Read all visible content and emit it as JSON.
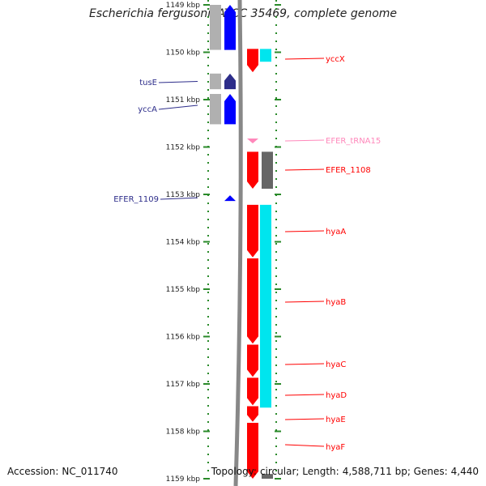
{
  "title": "Escherichia fergusonii ATCC 35469, complete genome",
  "footer": {
    "accession_label": "Accession:",
    "accession": "NC_011740",
    "topology_label": "Topology:",
    "topology": "circular",
    "length_label": "Length:",
    "length": "4,588,711 bp",
    "genes_label": "Genes:",
    "genes": "4,440"
  },
  "colors": {
    "forward_cds": "#0000ff",
    "forward_dark": "#2d2d8a",
    "reverse_cds": "#ff0000",
    "trna": "#ff88bb",
    "cyan_track": "#00e5ee",
    "gray_track": "#b0b0b0",
    "dark_gray_track": "#666666",
    "tick_green": "#2a8a2a",
    "backbone": "#888888"
  },
  "chart_data": {
    "type": "genome-map",
    "x_unit": "kbp",
    "range": [
      1149,
      1159
    ],
    "ticks": [
      {
        "value": 1149,
        "label": "1149 kbp"
      },
      {
        "value": 1150,
        "label": "1150 kbp"
      },
      {
        "value": 1151,
        "label": "1151 kbp"
      },
      {
        "value": 1152,
        "label": "1152 kbp"
      },
      {
        "value": 1153,
        "label": "1153 kbp"
      },
      {
        "value": 1154,
        "label": "1154 kbp"
      },
      {
        "value": 1155,
        "label": "1155 kbp"
      },
      {
        "value": 1156,
        "label": "1156 kbp"
      },
      {
        "value": 1157,
        "label": "1157 kbp"
      },
      {
        "value": 1158,
        "label": "1158 kbp"
      },
      {
        "value": 1159,
        "label": "1159 kbp"
      }
    ],
    "features": [
      {
        "name": "",
        "strand": "+",
        "type": "CDS",
        "start": 1149.0,
        "end": 1149.95
      },
      {
        "name": "tusE",
        "strand": "+",
        "type": "CDS",
        "start": 1150.45,
        "end": 1150.78
      },
      {
        "name": "yccA",
        "strand": "+",
        "type": "CDS",
        "start": 1150.88,
        "end": 1151.52
      },
      {
        "name": "EFER_1109",
        "strand": "+",
        "type": "CDS",
        "start": 1153.02,
        "end": 1153.13
      },
      {
        "name": "yccX",
        "strand": "-",
        "type": "CDS",
        "start": 1149.93,
        "end": 1150.42
      },
      {
        "name": "EFER_tRNA15",
        "strand": "-",
        "type": "tRNA",
        "start": 1151.82,
        "end": 1151.92
      },
      {
        "name": "EFER_1108",
        "strand": "-",
        "type": "CDS",
        "start": 1152.1,
        "end": 1152.88
      },
      {
        "name": "hyaA",
        "strand": "-",
        "type": "CDS",
        "start": 1153.22,
        "end": 1154.33
      },
      {
        "name": "hyaB",
        "strand": "-",
        "type": "CDS",
        "start": 1154.35,
        "end": 1156.15
      },
      {
        "name": "hyaC",
        "strand": "-",
        "type": "CDS",
        "start": 1156.17,
        "end": 1156.85
      },
      {
        "name": "hyaD",
        "strand": "-",
        "type": "CDS",
        "start": 1156.87,
        "end": 1157.45
      },
      {
        "name": "hyaE",
        "strand": "-",
        "type": "CDS",
        "start": 1157.47,
        "end": 1157.8
      },
      {
        "name": "hyaF",
        "strand": "-",
        "type": "CDS",
        "start": 1157.82,
        "end": 1159.0
      }
    ],
    "tracks": [
      {
        "track": "forward-gray",
        "segments": [
          [
            1149.0,
            1149.95
          ],
          [
            1150.45,
            1150.78
          ],
          [
            1150.88,
            1151.52
          ]
        ]
      },
      {
        "track": "reverse-gray",
        "segments": [
          [
            1152.1,
            1152.88
          ],
          [
            1158.9,
            1159.0
          ]
        ]
      },
      {
        "track": "reverse-cyan",
        "segments": [
          [
            1149.93,
            1150.2
          ],
          [
            1153.22,
            1157.5
          ]
        ]
      }
    ]
  }
}
